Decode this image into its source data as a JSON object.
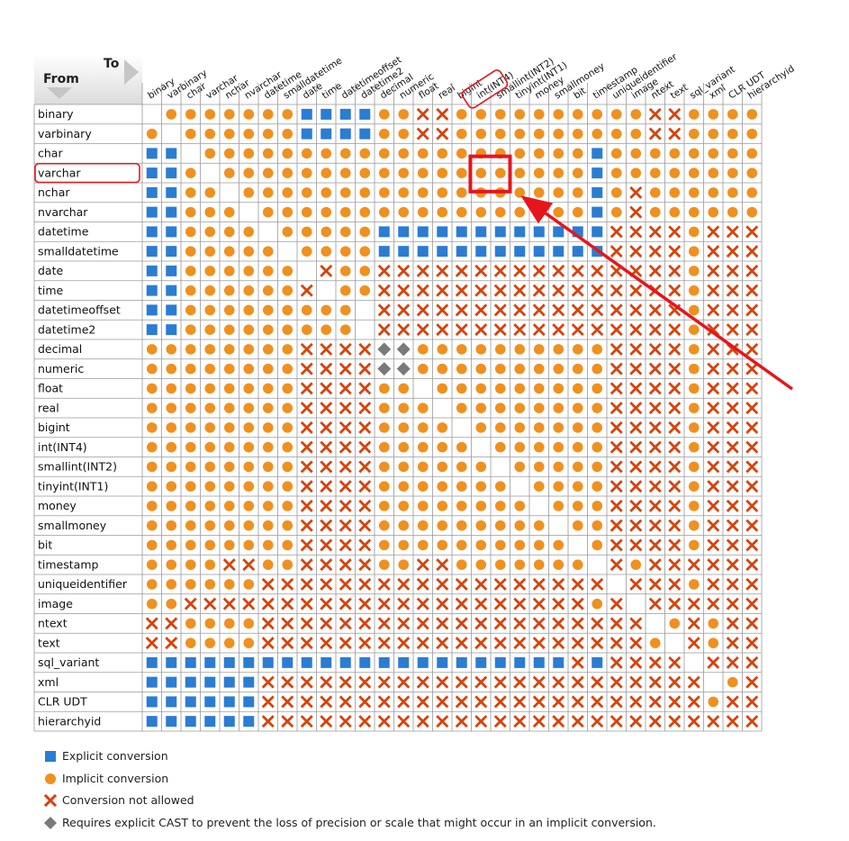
{
  "header": {
    "to_label": "To",
    "from_label": "From"
  },
  "colors": {
    "explicit": "#2b7cd3",
    "implicit": "#f0901e",
    "not_allowed": "#d9420b",
    "cast_required": "#7a7a7a",
    "highlight": "#e8141b",
    "grid_line": "#9a9a9a"
  },
  "symbol_legend": {
    "E": "explicit",
    "I": "implicit",
    "X": "not_allowed",
    "D": "cast_required",
    "O": "open_circle",
    "-": "empty"
  },
  "columns": [
    "binary",
    "varbinary",
    "char",
    "varchar",
    "nchar",
    "nvarchar",
    "datetime",
    "smalldatetime",
    "date",
    "time",
    "datetimeoffset",
    "datetime2",
    "decimal",
    "numeric",
    "float",
    "real",
    "bigint",
    "int(INT4)",
    "smallint(INT2)",
    "tinyint(INT1)",
    "money",
    "smallmoney",
    "bit",
    "timestamp",
    "uniqueidentifier",
    "image",
    "ntext",
    "text",
    "sql_variant",
    "xml",
    "CLR UDT",
    "hierarchyid"
  ],
  "rows": [
    {
      "name": "binary",
      "cells": "-IIIIIIIEEEEIIXXIIIIIIIIIIXXIIII"
    },
    {
      "name": "varbinary",
      "cells": "I-IIIIIIEEEEIIXXIIIIIIIIIIXXIIII"
    },
    {
      "name": "char",
      "cells": "EE-IIIIIIIIIIIIIIIIIIIIEIIIIIIII"
    },
    {
      "name": "varchar",
      "cells": "EEI-IIIIIIIIIIIIIIIIIIIEIIIIIIII"
    },
    {
      "name": "nchar",
      "cells": "EEII-IIIIIIIIIIIIIIIIIIEIXIIIIII"
    },
    {
      "name": "nvarchar",
      "cells": "EEIII-IIIIIIIIIIIIIIIIIEIXIIIIII"
    },
    {
      "name": "datetime",
      "cells": "EEIIII-IIIIIEEEEEEEEEEEEXXXXIXXX"
    },
    {
      "name": "smalldatetime",
      "cells": "EEIIIII-IIIIEEEEEEEEEEEEXXXXIXXX"
    },
    {
      "name": "date",
      "cells": "EEIIIIII-XIIXXXXXXXXXXXXXXXXIXXX"
    },
    {
      "name": "time",
      "cells": "EEIIIIIIX-IIXXXXXXXXXXXXXXXXIXXX"
    },
    {
      "name": "datetimeoffset",
      "cells": "EEIIIIIIIII-XXXXXXXXXXXXXXXXIXXX"
    },
    {
      "name": "datetime2",
      "cells": "EEIIIIIIIII-XXXXXXXXXXXXXXXXIXXX"
    },
    {
      "name": "decimal",
      "cells": "IIIIIIIIXXXXDDIIIIIIIIIIXXXXIXXX"
    },
    {
      "name": "numeric",
      "cells": "IIIIIIIIXXXXDDIIIIIIIIIIXXXXIXXX"
    },
    {
      "name": "float",
      "cells": "IIIIIIIIXXXXII-IIIIIIIIIXXXXIXXX"
    },
    {
      "name": "real",
      "cells": "IIIIIIIIXXXXIII-IIIIIIIIXXXXIXXX"
    },
    {
      "name": "bigint",
      "cells": "IIIIIIIIXXXXIIII-IIIIIIIXXXXIXXX"
    },
    {
      "name": "int(INT4)",
      "cells": "IIIIIIIIXXXXIIIII-IIIIIIXXXXIXXX"
    },
    {
      "name": "smallint(INT2)",
      "cells": "IIIIIIIIXXXXIIIIII-IIIIIXXXXIXXX"
    },
    {
      "name": "tinyint(INT1)",
      "cells": "IIIIIIIIXXXXIIIIIII-IIIIXXXXIXXX"
    },
    {
      "name": "money",
      "cells": "IIIIIIIIXXXXIIIIIIII-IIIXXXXIXXX"
    },
    {
      "name": "smallmoney",
      "cells": "IIIIIIIIXXXXIIIIIIIII-IIXXXXIXXX"
    },
    {
      "name": "bit",
      "cells": "IIIIIIIIXXXXIIIIIIIIII-IXXXXIXXX"
    },
    {
      "name": "timestamp",
      "cells": "IIIIXXIIXXXXIIXXIIIIIII-XIXXXXXX"
    },
    {
      "name": "uniqueidentifier",
      "cells": "IIIIIIXXXXXXXXXXXXXXXXXX-XXXIXXX"
    },
    {
      "name": "image",
      "cells": "IIXXXXXXXXXXXXXXXXXXXXXIX-XXXXXX"
    },
    {
      "name": "ntext",
      "cells": "XXIIIIXXXXXXXXXXXXXXXXXXXX-IXIXX"
    },
    {
      "name": "text",
      "cells": "XXIIIIXXXXXXXXXXXXXXXXXXXXI-XIXX"
    },
    {
      "name": "sql_variant",
      "cells": "EEEEEEEEEEEEEEEEEEEEEEXEXXXX-XXX"
    },
    {
      "name": "xml",
      "cells": "EEEEEEXXXXXXXXXXXXXXXXXXXXXXX-IX"
    },
    {
      "name": "CLR UDT",
      "cells": "EEEEEEXXXXXXXXXXXXXXXXXXXXXXXIXX"
    },
    {
      "name": "hierarchyid",
      "cells": "EEEEEEXXXXXXXXXXXXXXXXXXXXXXXXXX"
    }
  ],
  "highlights": {
    "row": "varchar",
    "column": "int(INT4)"
  },
  "legend": [
    {
      "symbol": "explicit",
      "label": "Explicit conversion"
    },
    {
      "symbol": "implicit",
      "label": "Implicit conversion"
    },
    {
      "symbol": "not_allowed",
      "label": "Conversion not allowed"
    },
    {
      "symbol": "cast_required",
      "label": "Requires explicit CAST to prevent the loss of precision or scale that might occur in an implicit conversion."
    }
  ]
}
